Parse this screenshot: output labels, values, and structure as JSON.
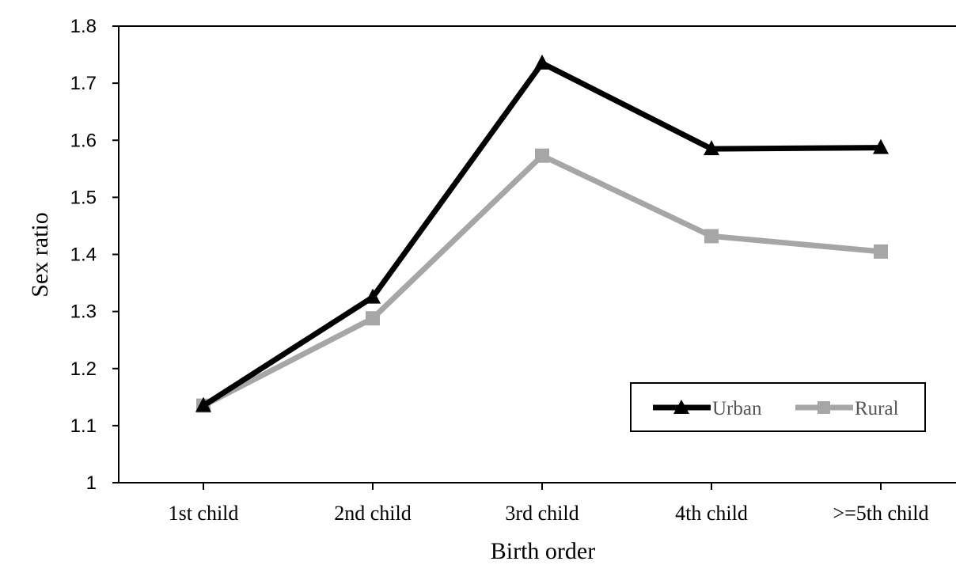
{
  "chart_data": {
    "type": "line",
    "title": "",
    "xlabel": "Birth order",
    "ylabel": "Sex ratio",
    "categories": [
      "1st child",
      "2nd child",
      "3rd child",
      "4th child",
      ">=5th child"
    ],
    "ylim": [
      1,
      1.8
    ],
    "yticks": [
      "1",
      "1.1",
      "1.2",
      "1.3",
      "1.4",
      "1.5",
      "1.6",
      "1.7",
      "1.8"
    ],
    "grid": false,
    "legend": "bottom-right",
    "series": [
      {
        "name": "Urban",
        "color": "#000000",
        "marker": "triangle",
        "values": [
          1.135,
          1.325,
          1.735,
          1.585,
          1.587
        ]
      },
      {
        "name": "Rural",
        "color": "#a6a6a6",
        "marker": "square",
        "values": [
          1.135,
          1.288,
          1.573,
          1.432,
          1.405
        ]
      }
    ]
  }
}
